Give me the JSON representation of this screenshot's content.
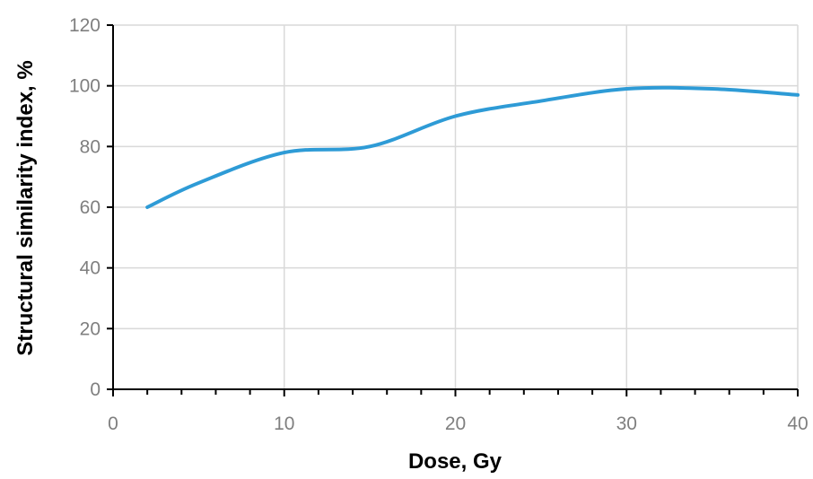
{
  "chart_data": {
    "type": "line",
    "title": "",
    "xlabel": "Dose, Gy",
    "ylabel": "Structural similarity index, %",
    "xlim": [
      0,
      40
    ],
    "ylim": [
      0,
      120
    ],
    "x_ticks": [
      0,
      10,
      20,
      30,
      40
    ],
    "y_ticks": [
      0,
      20,
      40,
      60,
      80,
      100,
      120
    ],
    "x_tick_labels": [
      "0",
      "10",
      "20",
      "30",
      "40"
    ],
    "y_tick_labels": [
      "0",
      "20",
      "40",
      "60",
      "80",
      "100",
      "120"
    ],
    "x_minor_tick_step": 2,
    "grid": true,
    "legend": "none",
    "series": [
      {
        "color": "#2e9bd6",
        "x": [
          2,
          5,
          10,
          15,
          20,
          25,
          30,
          35,
          40
        ],
        "y": [
          60,
          68,
          78,
          80,
          90,
          95,
          99,
          99,
          97
        ]
      }
    ]
  }
}
